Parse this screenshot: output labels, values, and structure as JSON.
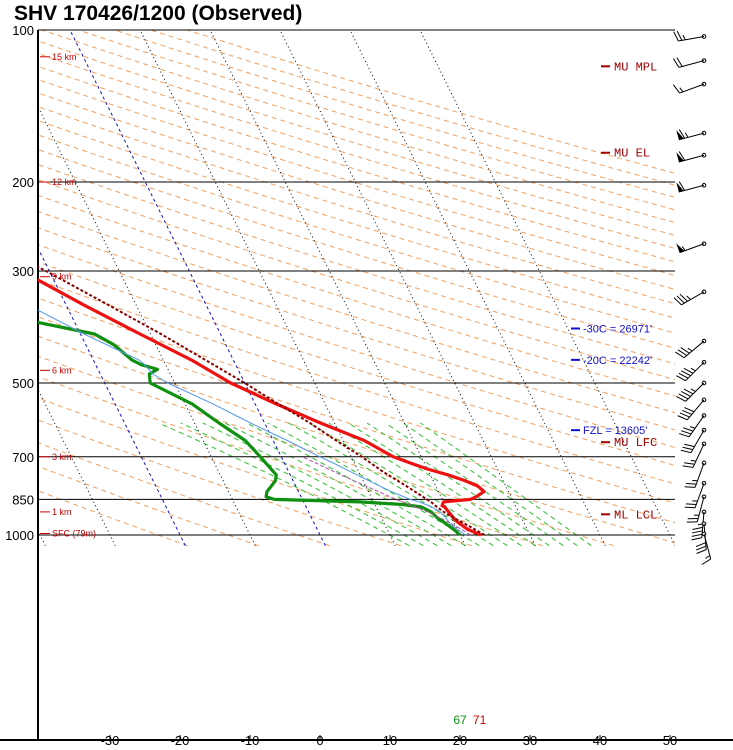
{
  "title": "SHV  170426/1200  (Observed)",
  "chart_data": {
    "type": "line",
    "subtype": "skew-t log-p sounding",
    "title": "SHV  170426/1200  (Observed)",
    "pressure_ticks": [
      100,
      200,
      300,
      500,
      700,
      850,
      1000
    ],
    "pressure_range": [
      100,
      1050
    ],
    "temperature_ticks": [
      -30,
      -20,
      -10,
      0,
      10,
      20,
      30,
      40,
      50
    ],
    "height_labels": [
      {
        "p": 113,
        "label": "15 km"
      },
      {
        "p": 200,
        "label": "12 km"
      },
      {
        "p": 308,
        "label": "9 km"
      },
      {
        "p": 472,
        "label": "6 km"
      },
      {
        "p": 700,
        "label": "3 km"
      },
      {
        "p": 900,
        "label": "1 km"
      },
      {
        "p": 993,
        "label": "SFC (79m)"
      }
    ],
    "series": [
      {
        "key": "temperature",
        "color": "#ee1111",
        "points": [
          [
            1000,
            23.0
          ],
          [
            975,
            21.5
          ],
          [
            940,
            20.5
          ],
          [
            925,
            20.3
          ],
          [
            900,
            20.0
          ],
          [
            880,
            19.8
          ],
          [
            875,
            19.5
          ],
          [
            860,
            20.0
          ],
          [
            850,
            24.0
          ],
          [
            840,
            25.0
          ],
          [
            820,
            26.5
          ],
          [
            800,
            26.0
          ],
          [
            780,
            24.5
          ],
          [
            760,
            22.5
          ],
          [
            740,
            20.0
          ],
          [
            720,
            18.0
          ],
          [
            700,
            16.0
          ],
          [
            650,
            13.0
          ],
          [
            600,
            8.0
          ],
          [
            550,
            3.0
          ],
          [
            500,
            -2.0
          ],
          [
            450,
            -6.0
          ],
          [
            400,
            -11.5
          ],
          [
            350,
            -17.5
          ],
          [
            300,
            -24.0
          ],
          [
            250,
            -32.5
          ],
          [
            210,
            -42.0
          ],
          [
            200,
            -43.5
          ],
          [
            180,
            -47.0
          ],
          [
            170,
            -49.5
          ],
          [
            160,
            -47.5
          ],
          [
            150,
            -47.0
          ],
          [
            140,
            -48.0
          ],
          [
            130,
            -50.0
          ],
          [
            120,
            -53.0
          ],
          [
            110,
            -56.0
          ],
          [
            100,
            -59.0
          ]
        ]
      },
      {
        "key": "dewpoint",
        "color": "#109010",
        "points": [
          [
            1000,
            20.0
          ],
          [
            975,
            19.5
          ],
          [
            940,
            18.5
          ],
          [
            925,
            18.0
          ],
          [
            900,
            17.5
          ],
          [
            880,
            16.5
          ],
          [
            870,
            14.0
          ],
          [
            860,
            8.0
          ],
          [
            850,
            -4.0
          ],
          [
            840,
            -5.0
          ],
          [
            820,
            -4.5
          ],
          [
            800,
            -3.5
          ],
          [
            780,
            -2.5
          ],
          [
            760,
            -2.0
          ],
          [
            700,
            -3.0
          ],
          [
            650,
            -4.0
          ],
          [
            600,
            -6.5
          ],
          [
            550,
            -9.0
          ],
          [
            500,
            -13.5
          ],
          [
            480,
            -13.0
          ],
          [
            470,
            -11.5
          ],
          [
            460,
            -13.5
          ],
          [
            450,
            -14.5
          ],
          [
            440,
            -15.0
          ],
          [
            420,
            -16.0
          ],
          [
            400,
            -18.0
          ],
          [
            380,
            -25.0
          ],
          [
            360,
            -30.0
          ],
          [
            340,
            -35.0
          ],
          [
            320,
            -42.0
          ],
          [
            300,
            -50.5
          ],
          [
            280,
            -42.0
          ],
          [
            260,
            -43.5
          ],
          [
            240,
            -45.0
          ],
          [
            220,
            -46.0
          ],
          [
            200,
            -47.5
          ],
          [
            180,
            -51.0
          ],
          [
            170,
            -53.0
          ],
          [
            160,
            -57.0
          ],
          [
            150,
            -60.0
          ],
          [
            140,
            -65.0
          ],
          [
            130,
            -70.0
          ],
          [
            120,
            -73.0
          ],
          [
            110,
            -74.0
          ],
          [
            100,
            -78.0
          ]
        ]
      },
      {
        "key": "virtual temperature",
        "color": "#5599ee",
        "points": [
          [
            1000,
            20.8
          ],
          [
            975,
            20.0
          ],
          [
            950,
            19.4
          ],
          [
            925,
            19.2
          ],
          [
            900,
            18.8
          ],
          [
            880,
            18.0
          ],
          [
            860,
            16.5
          ],
          [
            850,
            15.4
          ],
          [
            820,
            13.2
          ],
          [
            800,
            12.0
          ],
          [
            760,
            9.5
          ],
          [
            720,
            7.0
          ],
          [
            700,
            5.5
          ],
          [
            650,
            2.0
          ],
          [
            600,
            -2.0
          ],
          [
            550,
            -6.0
          ],
          [
            500,
            -11.0
          ],
          [
            480,
            -12.5
          ],
          [
            460,
            -13.0
          ],
          [
            450,
            -13.5
          ],
          [
            400,
            -19.5
          ],
          [
            350,
            -25.5
          ],
          [
            300,
            -31.0
          ],
          [
            250,
            -38.0
          ],
          [
            210,
            -44.5
          ],
          [
            200,
            -45.5
          ],
          [
            180,
            -48.0
          ],
          [
            170,
            -49.5
          ]
        ]
      },
      {
        "key": "mixed layer parcel",
        "color": "#b050b0",
        "points": [
          [
            1000,
            21.5
          ],
          [
            975,
            20.6
          ],
          [
            950,
            19.6
          ],
          [
            925,
            18.4
          ],
          [
            900,
            17.0
          ],
          [
            880,
            15.6
          ],
          [
            860,
            14.2
          ],
          [
            850,
            13.4
          ],
          [
            820,
            11.4
          ],
          [
            800,
            10.0
          ],
          [
            760,
            7.2
          ],
          [
            720,
            4.5
          ],
          [
            700,
            3.0
          ]
        ]
      },
      {
        "key": "most unstable parcel",
        "color": "#880000",
        "points": [
          [
            1000,
            23.5
          ],
          [
            975,
            22.5
          ],
          [
            950,
            21.5
          ],
          [
            925,
            20.3
          ],
          [
            900,
            19.3
          ],
          [
            880,
            18.7
          ],
          [
            860,
            18.2
          ],
          [
            850,
            17.8
          ],
          [
            800,
            15.8
          ],
          [
            750,
            13.5
          ],
          [
            700,
            11.5
          ],
          [
            650,
            9.0
          ],
          [
            620,
            7.5
          ],
          [
            600,
            6.5
          ],
          [
            550,
            3.3
          ],
          [
            500,
            0.0
          ],
          [
            450,
            -4.0
          ],
          [
            400,
            -8.5
          ],
          [
            350,
            -14.0
          ],
          [
            300,
            -20.5
          ],
          [
            250,
            -29.0
          ],
          [
            200,
            -39.5
          ],
          [
            180,
            -44.5
          ],
          [
            150,
            -53.0
          ],
          [
            120,
            -63.0
          ],
          [
            100,
            -70.0
          ]
        ]
      }
    ],
    "surface_labels": [
      {
        "value": "67",
        "color": "#109010",
        "t": 20.0
      },
      {
        "value": "71",
        "color": "#cc0000",
        "t": 22.8
      }
    ],
    "levels": [
      {
        "p": 118,
        "label": "MU  MPL"
      },
      {
        "p": 175,
        "label": "MU  EL"
      },
      {
        "p": 655,
        "label": "MU  LFC"
      },
      {
        "p": 910,
        "label": "ML  LCL"
      }
    ],
    "freezing_levels": [
      {
        "p": 390,
        "label": "-30C = 26971'"
      },
      {
        "p": 450,
        "label": "-20C = 22242'"
      },
      {
        "p": 620,
        "label": "FZL = 13605'"
      }
    ],
    "wind_barbs": [
      {
        "p": 103,
        "dir": 260,
        "spd": 25
      },
      {
        "p": 115,
        "dir": 255,
        "spd": 20
      },
      {
        "p": 128,
        "dir": 250,
        "spd": 15
      },
      {
        "p": 160,
        "dir": 255,
        "spd": 65
      },
      {
        "p": 177,
        "dir": 255,
        "spd": 60
      },
      {
        "p": 203,
        "dir": 255,
        "spd": 60
      },
      {
        "p": 265,
        "dir": 250,
        "spd": 55
      },
      {
        "p": 330,
        "dir": 240,
        "spd": 35
      },
      {
        "p": 413,
        "dir": 230,
        "spd": 35
      },
      {
        "p": 455,
        "dir": 225,
        "spd": 45
      },
      {
        "p": 500,
        "dir": 225,
        "spd": 45
      },
      {
        "p": 540,
        "dir": 220,
        "spd": 40
      },
      {
        "p": 580,
        "dir": 215,
        "spd": 35
      },
      {
        "p": 620,
        "dir": 210,
        "spd": 30
      },
      {
        "p": 660,
        "dir": 205,
        "spd": 25
      },
      {
        "p": 720,
        "dir": 200,
        "spd": 25
      },
      {
        "p": 790,
        "dir": 200,
        "spd": 25
      },
      {
        "p": 840,
        "dir": 195,
        "spd": 25
      },
      {
        "p": 900,
        "dir": 185,
        "spd": 45
      },
      {
        "p": 950,
        "dir": 175,
        "spd": 30
      },
      {
        "p": 995,
        "dir": 165,
        "spd": 15
      }
    ]
  },
  "colors": {
    "isotherm": "#000000",
    "dry_adiabat": "#f0a060",
    "moist_adiabat": "#2ec02e",
    "freezing_isotherm": "#1010cc"
  }
}
